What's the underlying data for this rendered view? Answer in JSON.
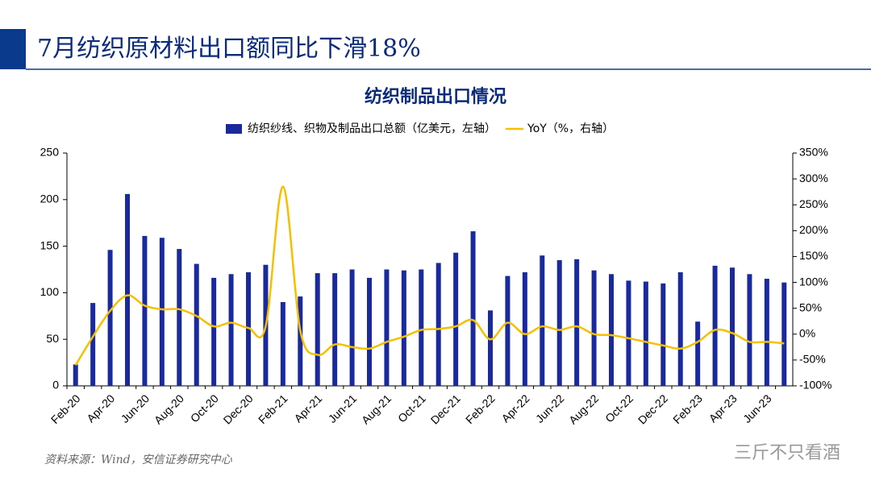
{
  "header": {
    "title": "7月纺织原材料出口额同比下滑18%"
  },
  "footer": {
    "source": "资料来源：Wind，安信证券研究中心",
    "watermark": "三斤不只看酒"
  },
  "chart_data": {
    "type": "bar-line",
    "title": "纺织制品出口情况",
    "categories": [
      "Feb-20",
      null,
      "Apr-20",
      null,
      "Jun-20",
      null,
      "Aug-20",
      null,
      "Oct-20",
      null,
      "Dec-20",
      null,
      "Feb-21",
      null,
      "Apr-21",
      null,
      "Jun-21",
      null,
      "Aug-21",
      null,
      "Oct-21",
      null,
      "Dec-21",
      null,
      "Feb-22",
      null,
      "Apr-22",
      null,
      "Jun-22",
      null,
      "Aug-22",
      null,
      "Oct-22",
      null,
      "Dec-22",
      null,
      "Feb-23",
      null,
      "Apr-23",
      null,
      "Jun-23",
      null
    ],
    "series": [
      {
        "name": "纺织纱线、织物及制品出口总额（亿美元，左轴）",
        "type": "bar",
        "color": "#1a2a9c",
        "values": [
          23,
          89,
          146,
          206,
          161,
          159,
          147,
          131,
          116,
          120,
          122,
          130,
          90,
          96,
          121,
          121,
          125,
          116,
          125,
          124,
          125,
          132,
          143,
          166,
          81,
          118,
          122,
          140,
          135,
          136,
          124,
          120,
          113,
          112,
          110,
          122,
          69,
          129,
          127,
          120,
          115,
          111
        ]
      },
      {
        "name": "YoY（%，右轴）",
        "type": "line",
        "axis": "y2",
        "color": "#f5c000",
        "values": [
          -60,
          -5,
          45,
          75,
          55,
          48,
          48,
          35,
          15,
          22,
          12,
          15,
          285,
          7,
          -40,
          -20,
          -25,
          -28,
          -15,
          -5,
          8,
          10,
          15,
          27,
          -10,
          22,
          0,
          15,
          8,
          15,
          0,
          -2,
          -8,
          -15,
          -22,
          -28,
          -15,
          8,
          2,
          -15,
          -15,
          -18
        ]
      }
    ],
    "ylim": [
      0,
      250
    ],
    "yticks": [
      0,
      50,
      100,
      150,
      200,
      250
    ],
    "y2lim": [
      -100,
      350
    ],
    "y2ticks": [
      {
        "value": -100,
        "label": "-100%"
      },
      {
        "value": -50,
        "label": "-50%"
      },
      {
        "value": 0,
        "label": "0%"
      },
      {
        "value": 50,
        "label": "50%"
      },
      {
        "value": 100,
        "label": "100%"
      },
      {
        "value": 150,
        "label": "150%"
      },
      {
        "value": 200,
        "label": "200%"
      },
      {
        "value": 250,
        "label": "250%"
      },
      {
        "value": 300,
        "label": "300%"
      },
      {
        "value": 350,
        "label": "350%"
      }
    ],
    "legend": "top"
  }
}
